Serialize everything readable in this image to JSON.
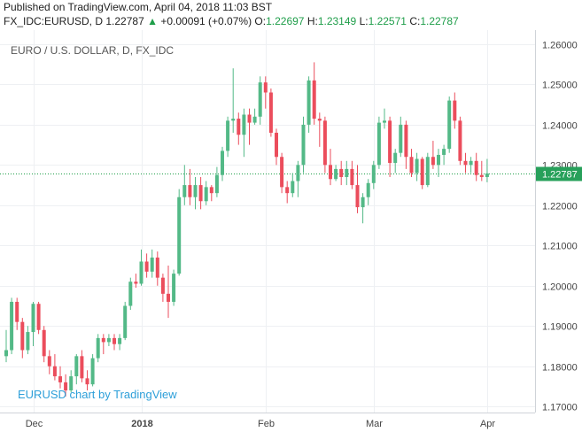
{
  "header": {
    "published": "Published on TradingView.com, April 04, 2018 11:03 BST",
    "symbol": "FX_IDC:EURUSD, D",
    "last": "1.22787",
    "change_arrow": "▲",
    "change": "+0.00091 (+0.07%)",
    "o_label": "O:",
    "o_value": "1.22697",
    "h_label": "H:",
    "h_value": "1.23149",
    "l_label": "L:",
    "l_value": "1.22571",
    "c_label": "C:",
    "c_value": "1.22787"
  },
  "watermark": "EURUSD chart by TradingView",
  "colors": {
    "up": "#53b987",
    "down": "#eb4d5c",
    "grid": "#eef0f3",
    "price_line": "#1f9e4a",
    "price_tag": "#27a05a",
    "axis_text": "#444444"
  },
  "chart_data": {
    "type": "candlestick",
    "title": "EURO / U.S. DOLLAR, D, FX_IDC",
    "ylim": [
      1.1685,
      1.2635
    ],
    "y_ticks": [
      "1.26000",
      "1.25000",
      "1.24000",
      "1.23000",
      "1.22000",
      "1.21000",
      "1.20000",
      "1.19000",
      "1.18000",
      "1.17000"
    ],
    "x_ticks": [
      {
        "label": "Dec",
        "index": 5
      },
      {
        "label": "2018",
        "index": 25
      },
      {
        "label": "Feb",
        "index": 48
      },
      {
        "label": "Mar",
        "index": 68
      },
      {
        "label": "Apr",
        "index": 89
      }
    ],
    "last_price": 1.22787,
    "last_price_label": "1.22787",
    "candles": [
      {
        "o": 1.1825,
        "h": 1.189,
        "l": 1.181,
        "c": 1.184
      },
      {
        "o": 1.184,
        "h": 1.197,
        "l": 1.183,
        "c": 1.196
      },
      {
        "o": 1.196,
        "h": 1.197,
        "l": 1.189,
        "c": 1.191
      },
      {
        "o": 1.191,
        "h": 1.192,
        "l": 1.182,
        "c": 1.184
      },
      {
        "o": 1.184,
        "h": 1.19,
        "l": 1.183,
        "c": 1.1885
      },
      {
        "o": 1.1885,
        "h": 1.196,
        "l": 1.185,
        "c": 1.1955
      },
      {
        "o": 1.1955,
        "h": 1.196,
        "l": 1.188,
        "c": 1.189
      },
      {
        "o": 1.189,
        "h": 1.19,
        "l": 1.181,
        "c": 1.1825
      },
      {
        "o": 1.1825,
        "h": 1.184,
        "l": 1.178,
        "c": 1.18
      },
      {
        "o": 1.18,
        "h": 1.183,
        "l": 1.1765,
        "c": 1.1775
      },
      {
        "o": 1.1775,
        "h": 1.18,
        "l": 1.1745,
        "c": 1.176
      },
      {
        "o": 1.176,
        "h": 1.178,
        "l": 1.1725,
        "c": 1.174
      },
      {
        "o": 1.174,
        "h": 1.179,
        "l": 1.1735,
        "c": 1.1775
      },
      {
        "o": 1.1775,
        "h": 1.183,
        "l": 1.1755,
        "c": 1.1825
      },
      {
        "o": 1.1825,
        "h": 1.184,
        "l": 1.176,
        "c": 1.177
      },
      {
        "o": 1.177,
        "h": 1.179,
        "l": 1.174,
        "c": 1.1755
      },
      {
        "o": 1.1755,
        "h": 1.183,
        "l": 1.175,
        "c": 1.182
      },
      {
        "o": 1.182,
        "h": 1.188,
        "l": 1.181,
        "c": 1.187
      },
      {
        "o": 1.187,
        "h": 1.188,
        "l": 1.183,
        "c": 1.186
      },
      {
        "o": 1.186,
        "h": 1.188,
        "l": 1.185,
        "c": 1.187
      },
      {
        "o": 1.187,
        "h": 1.188,
        "l": 1.184,
        "c": 1.1855
      },
      {
        "o": 1.1855,
        "h": 1.188,
        "l": 1.184,
        "c": 1.187
      },
      {
        "o": 1.187,
        "h": 1.196,
        "l": 1.1865,
        "c": 1.195
      },
      {
        "o": 1.195,
        "h": 1.202,
        "l": 1.194,
        "c": 1.201
      },
      {
        "o": 1.201,
        "h": 1.203,
        "l": 1.1995,
        "c": 1.2005
      },
      {
        "o": 1.2005,
        "h": 1.209,
        "l": 1.2,
        "c": 1.206
      },
      {
        "o": 1.206,
        "h": 1.208,
        "l": 1.202,
        "c": 1.2035
      },
      {
        "o": 1.2035,
        "h": 1.209,
        "l": 1.202,
        "c": 1.207
      },
      {
        "o": 1.207,
        "h": 1.2085,
        "l": 1.2,
        "c": 1.202
      },
      {
        "o": 1.202,
        "h": 1.203,
        "l": 1.196,
        "c": 1.198
      },
      {
        "o": 1.198,
        "h": 1.205,
        "l": 1.192,
        "c": 1.196
      },
      {
        "o": 1.196,
        "h": 1.204,
        "l": 1.195,
        "c": 1.203
      },
      {
        "o": 1.203,
        "h": 1.224,
        "l": 1.2025,
        "c": 1.222
      },
      {
        "o": 1.222,
        "h": 1.23,
        "l": 1.22,
        "c": 1.225
      },
      {
        "o": 1.225,
        "h": 1.229,
        "l": 1.22,
        "c": 1.222
      },
      {
        "o": 1.222,
        "h": 1.227,
        "l": 1.219,
        "c": 1.225
      },
      {
        "o": 1.225,
        "h": 1.227,
        "l": 1.219,
        "c": 1.221
      },
      {
        "o": 1.221,
        "h": 1.226,
        "l": 1.22,
        "c": 1.2245
      },
      {
        "o": 1.2245,
        "h": 1.225,
        "l": 1.221,
        "c": 1.223
      },
      {
        "o": 1.223,
        "h": 1.2295,
        "l": 1.222,
        "c": 1.2275
      },
      {
        "o": 1.2275,
        "h": 1.2345,
        "l": 1.226,
        "c": 1.2335
      },
      {
        "o": 1.2335,
        "h": 1.242,
        "l": 1.232,
        "c": 1.241
      },
      {
        "o": 1.241,
        "h": 1.254,
        "l": 1.238,
        "c": 1.2415
      },
      {
        "o": 1.2415,
        "h": 1.243,
        "l": 1.235,
        "c": 1.2375
      },
      {
        "o": 1.2375,
        "h": 1.244,
        "l": 1.232,
        "c": 1.2425
      },
      {
        "o": 1.2425,
        "h": 1.244,
        "l": 1.235,
        "c": 1.2405
      },
      {
        "o": 1.2405,
        "h": 1.244,
        "l": 1.24,
        "c": 1.242
      },
      {
        "o": 1.242,
        "h": 1.252,
        "l": 1.24,
        "c": 1.2505
      },
      {
        "o": 1.2505,
        "h": 1.252,
        "l": 1.244,
        "c": 1.248
      },
      {
        "o": 1.248,
        "h": 1.249,
        "l": 1.237,
        "c": 1.238
      },
      {
        "o": 1.238,
        "h": 1.239,
        "l": 1.23,
        "c": 1.232
      },
      {
        "o": 1.232,
        "h": 1.233,
        "l": 1.223,
        "c": 1.2245
      },
      {
        "o": 1.2245,
        "h": 1.226,
        "l": 1.2205,
        "c": 1.223
      },
      {
        "o": 1.223,
        "h": 1.228,
        "l": 1.222,
        "c": 1.226
      },
      {
        "o": 1.226,
        "h": 1.231,
        "l": 1.222,
        "c": 1.23
      },
      {
        "o": 1.23,
        "h": 1.242,
        "l": 1.228,
        "c": 1.24
      },
      {
        "o": 1.24,
        "h": 1.252,
        "l": 1.238,
        "c": 1.251
      },
      {
        "o": 1.251,
        "h": 1.2555,
        "l": 1.24,
        "c": 1.2415
      },
      {
        "o": 1.2415,
        "h": 1.243,
        "l": 1.2345,
        "c": 1.241
      },
      {
        "o": 1.241,
        "h": 1.242,
        "l": 1.228,
        "c": 1.23
      },
      {
        "o": 1.23,
        "h": 1.234,
        "l": 1.225,
        "c": 1.2265
      },
      {
        "o": 1.2265,
        "h": 1.23,
        "l": 1.226,
        "c": 1.229
      },
      {
        "o": 1.229,
        "h": 1.231,
        "l": 1.225,
        "c": 1.227
      },
      {
        "o": 1.227,
        "h": 1.231,
        "l": 1.225,
        "c": 1.229
      },
      {
        "o": 1.229,
        "h": 1.231,
        "l": 1.224,
        "c": 1.225
      },
      {
        "o": 1.225,
        "h": 1.23,
        "l": 1.218,
        "c": 1.2195
      },
      {
        "o": 1.2195,
        "h": 1.223,
        "l": 1.2155,
        "c": 1.222
      },
      {
        "o": 1.222,
        "h": 1.2265,
        "l": 1.22,
        "c": 1.2255
      },
      {
        "o": 1.2255,
        "h": 1.231,
        "l": 1.224,
        "c": 1.23
      },
      {
        "o": 1.23,
        "h": 1.242,
        "l": 1.229,
        "c": 1.2405
      },
      {
        "o": 1.2405,
        "h": 1.244,
        "l": 1.239,
        "c": 1.241
      },
      {
        "o": 1.241,
        "h": 1.242,
        "l": 1.227,
        "c": 1.2305
      },
      {
        "o": 1.2305,
        "h": 1.234,
        "l": 1.228,
        "c": 1.233
      },
      {
        "o": 1.233,
        "h": 1.242,
        "l": 1.232,
        "c": 1.24
      },
      {
        "o": 1.24,
        "h": 1.241,
        "l": 1.229,
        "c": 1.232
      },
      {
        "o": 1.232,
        "h": 1.234,
        "l": 1.227,
        "c": 1.228
      },
      {
        "o": 1.228,
        "h": 1.233,
        "l": 1.226,
        "c": 1.2315
      },
      {
        "o": 1.2315,
        "h": 1.232,
        "l": 1.224,
        "c": 1.225
      },
      {
        "o": 1.225,
        "h": 1.233,
        "l": 1.2245,
        "c": 1.232
      },
      {
        "o": 1.232,
        "h": 1.236,
        "l": 1.229,
        "c": 1.23
      },
      {
        "o": 1.23,
        "h": 1.234,
        "l": 1.227,
        "c": 1.2325
      },
      {
        "o": 1.2325,
        "h": 1.235,
        "l": 1.23,
        "c": 1.234
      },
      {
        "o": 1.234,
        "h": 1.247,
        "l": 1.233,
        "c": 1.246
      },
      {
        "o": 1.246,
        "h": 1.248,
        "l": 1.239,
        "c": 1.241
      },
      {
        "o": 1.241,
        "h": 1.242,
        "l": 1.23,
        "c": 1.231
      },
      {
        "o": 1.231,
        "h": 1.233,
        "l": 1.228,
        "c": 1.23
      },
      {
        "o": 1.23,
        "h": 1.232,
        "l": 1.228,
        "c": 1.231
      },
      {
        "o": 1.231,
        "h": 1.233,
        "l": 1.226,
        "c": 1.2275
      },
      {
        "o": 1.2275,
        "h": 1.231,
        "l": 1.226,
        "c": 1.227
      },
      {
        "o": 1.227,
        "h": 1.2315,
        "l": 1.2257,
        "c": 1.2279
      }
    ]
  }
}
